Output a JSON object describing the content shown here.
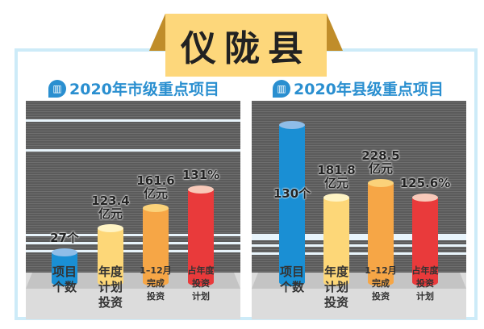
{
  "title": "仪陇县",
  "chart_data": [
    {
      "type": "bar",
      "title": "2020年市级重点项目",
      "categories": [
        "项目个数",
        "年度计划投资",
        "1–12月完成投资",
        "占年度投资计划"
      ],
      "category_lines": [
        [
          "项目",
          "个数"
        ],
        [
          "年度",
          "计划",
          "投资"
        ],
        [
          "1–12月",
          "完成",
          "投资"
        ],
        [
          "占年度",
          "投资",
          "计划"
        ]
      ],
      "values": [
        27,
        123.4,
        161.6,
        131
      ],
      "units": [
        "个",
        "亿元",
        "亿元",
        "%"
      ],
      "labels": [
        "27个",
        "123.4\n亿元",
        "161.6\n亿元",
        "131%"
      ],
      "colors": [
        "#1a8fd4",
        "#fdd778",
        "#f6a646",
        "#e93a3b"
      ]
    },
    {
      "type": "bar",
      "title": "2020年县级重点项目",
      "categories": [
        "项目个数",
        "年度计划投资",
        "1–12月完成投资",
        "占年度投资计划"
      ],
      "category_lines": [
        [
          "项目",
          "个数"
        ],
        [
          "年度",
          "计划",
          "投资"
        ],
        [
          "1–12月",
          "完成",
          "投资"
        ],
        [
          "占年度",
          "投资",
          "计划"
        ]
      ],
      "values": [
        130,
        181.8,
        228.5,
        125.6
      ],
      "units": [
        "个",
        "亿元",
        "亿元",
        "%"
      ],
      "labels": [
        "130个",
        "181.8\n亿元",
        "228.5\n亿元",
        "125.6%"
      ],
      "colors": [
        "#1a8fd4",
        "#fdd778",
        "#f6a646",
        "#e93a3b"
      ]
    }
  ]
}
